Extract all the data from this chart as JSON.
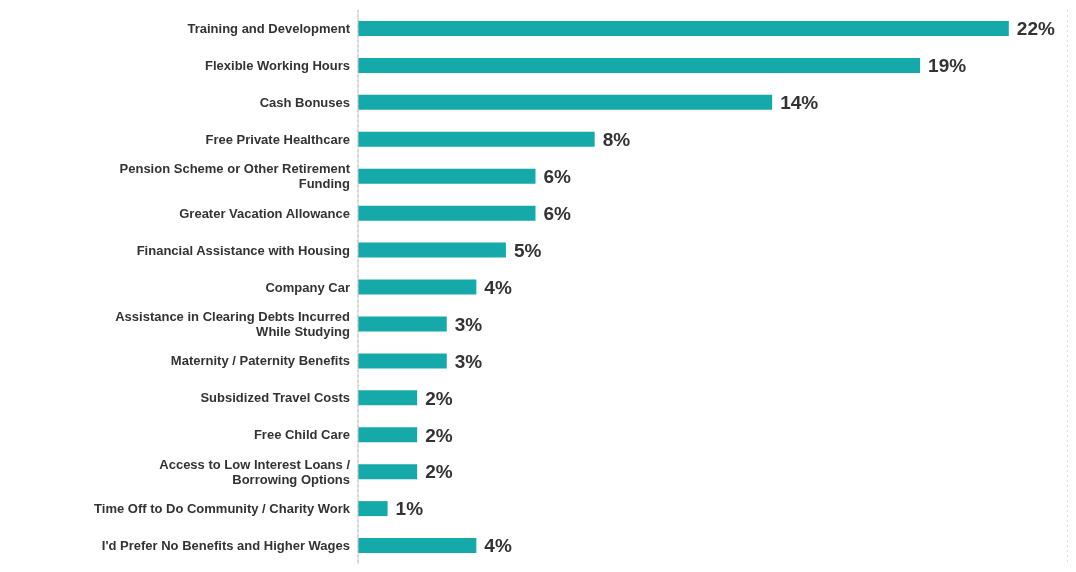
{
  "chart_data": {
    "type": "bar",
    "orientation": "horizontal",
    "categories": [
      "Training and Development",
      "Flexible Working Hours",
      "Cash Bonuses",
      "Free Private Healthcare",
      "Pension Scheme or Other Retirement Funding",
      "Greater Vacation Allowance",
      "Financial Assistance with Housing",
      "Company Car",
      "Assistance in Clearing Debts Incurred While Studying",
      "Maternity / Paternity Benefits",
      "Subsidized Travel Costs",
      "Free Child Care",
      "Access to Low Interest Loans / Borrowing Options",
      "Time Off to Do Community / Charity Work",
      "I'd Prefer No Benefits and Higher Wages"
    ],
    "values": [
      22,
      19,
      14,
      8,
      6,
      6,
      5,
      4,
      3,
      3,
      2,
      2,
      2,
      1,
      4
    ],
    "value_labels": [
      "22%",
      "19%",
      "14%",
      "8%",
      "6%",
      "6%",
      "5%",
      "4%",
      "3%",
      "3%",
      "2%",
      "2%",
      "2%",
      "1%",
      "4%"
    ],
    "color": "#16a9a9",
    "xlim": [
      0,
      24
    ],
    "grid": "x",
    "tick_labels": "y",
    "legend": false
  }
}
